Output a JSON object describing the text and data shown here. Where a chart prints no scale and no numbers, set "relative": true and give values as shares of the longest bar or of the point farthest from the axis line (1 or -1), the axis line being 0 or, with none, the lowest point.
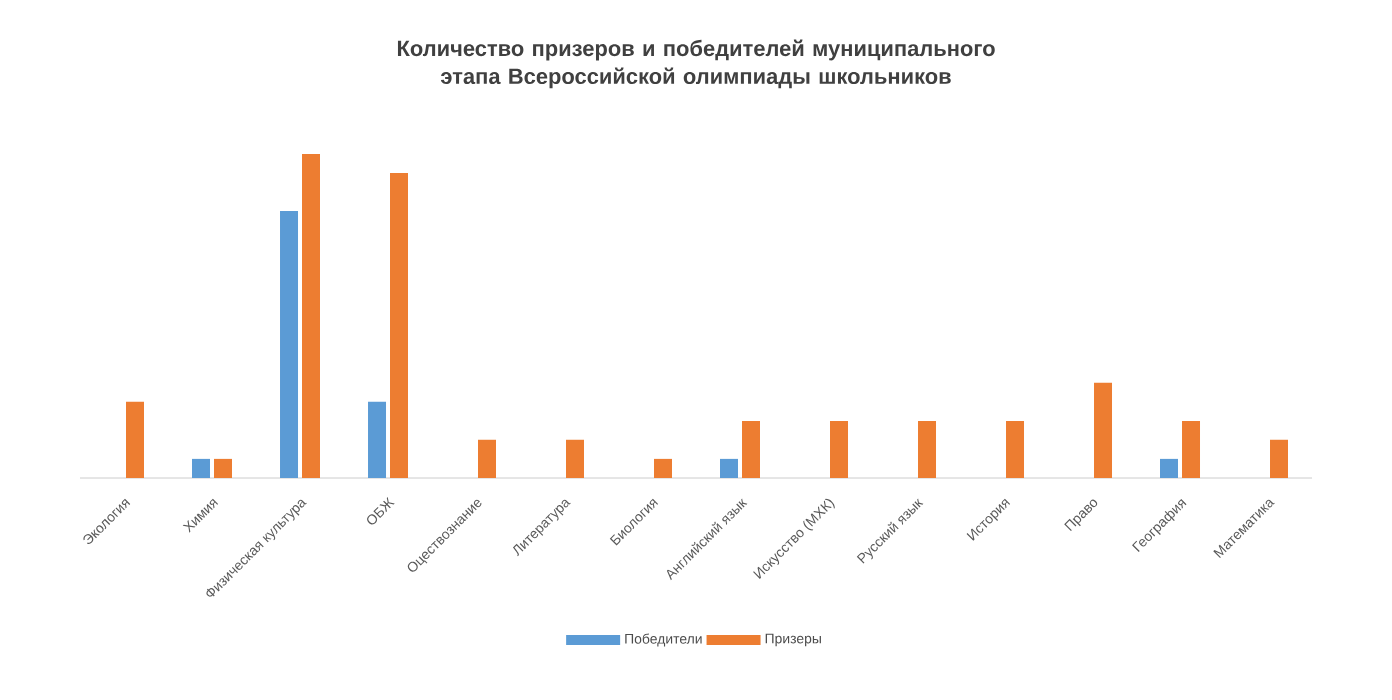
{
  "chart_data": {
    "type": "bar",
    "title": "Количество призеров и победителей муниципального этапа Всероссийской олимпиады школьников",
    "categories": [
      "Экология",
      "Химия",
      "Физическая культура",
      "ОБЖ",
      "Оцествознание",
      "Литература",
      "Биология",
      "Английский язык",
      "Искусство (МХК)",
      "Русский язык",
      "История",
      "Право",
      "География",
      "Математика"
    ],
    "relative": true,
    "series": [
      {
        "name": "Победители",
        "color": "#5b9bd5",
        "values": [
          0,
          0.059,
          0.824,
          0.235,
          0,
          0,
          0,
          0.059,
          0,
          0,
          0,
          0,
          0.059,
          0
        ]
      },
      {
        "name": "Призеры",
        "color": "#ed7d31",
        "values": [
          0.235,
          0.059,
          1,
          0.941,
          0.118,
          0.118,
          0.059,
          0.176,
          0.176,
          0.176,
          0.176,
          0.294,
          0.176,
          0.118
        ]
      }
    ],
    "legend": "bottom"
  }
}
